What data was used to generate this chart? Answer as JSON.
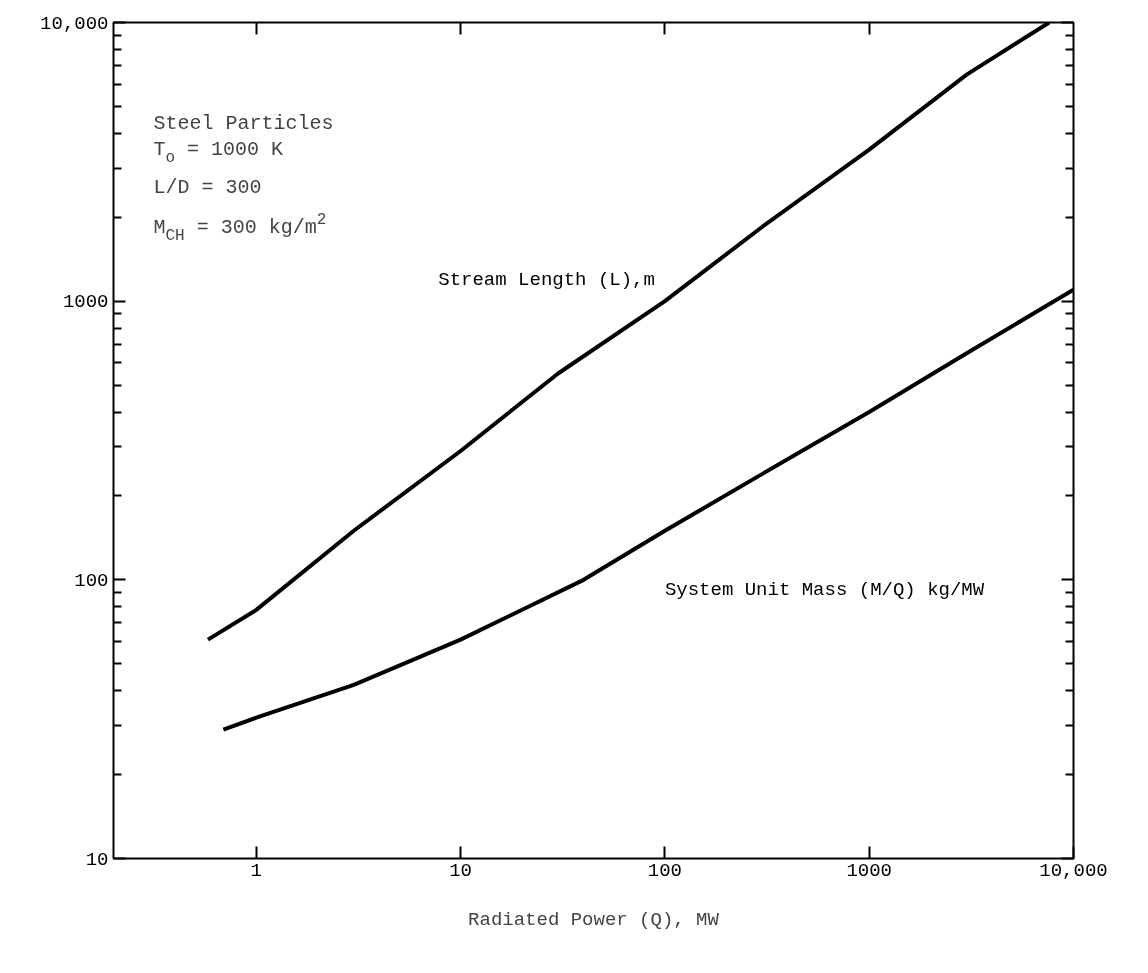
{
  "chart_data": {
    "type": "line",
    "xlabel": "Radiated Power (Q), MW",
    "log": "xy",
    "grid": false,
    "legend": false,
    "marker": "none",
    "line_style": "solid",
    "xlim": [
      0.2,
      10000
    ],
    "ylim": [
      10,
      10000
    ],
    "xticks": [
      1,
      10,
      100,
      1000,
      {
        "value": 10000,
        "label": "10,000"
      }
    ],
    "yticks": [
      10,
      100,
      1000,
      {
        "value": 10000,
        "label": "10,000"
      }
    ],
    "annotations": [
      "Steel Particles",
      "T$_{o}$ = 1000 K",
      "L/D = 300",
      "M$_{CH}$ = 300 kg/m$^{2}$"
    ],
    "series": [
      {
        "name": "Stream Length (L),m",
        "color": "#000000",
        "x": [
          0.58,
          1,
          3,
          10,
          30,
          100,
          300,
          1000,
          3000,
          7600
        ],
        "values": [
          61,
          78,
          150,
          290,
          550,
          1000,
          1850,
          3500,
          6500,
          10000
        ]
      },
      {
        "name": "System Unit Mass (M/Q) kg/MW",
        "color": "#000000",
        "x": [
          0.69,
          1,
          3,
          10,
          40,
          100,
          300,
          1000,
          3000,
          10000
        ],
        "values": [
          29,
          32,
          42,
          61,
          100,
          150,
          240,
          400,
          650,
          1100
        ]
      }
    ]
  }
}
